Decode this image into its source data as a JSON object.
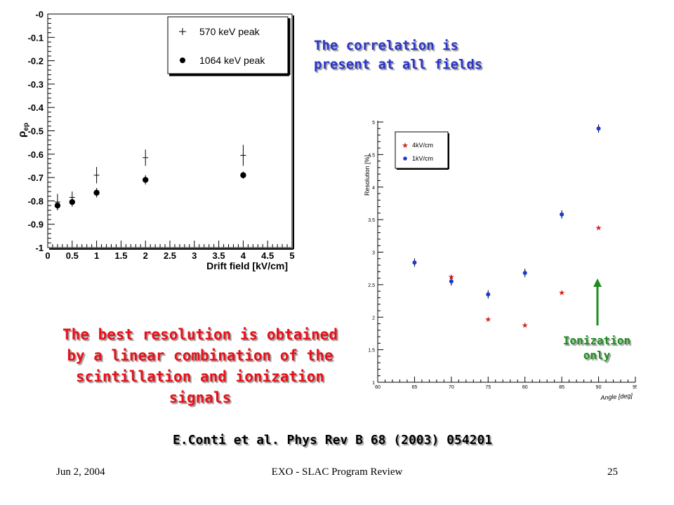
{
  "slide": {
    "note_top": [
      "The correlation is",
      "present at all fields"
    ],
    "note_best": [
      "The best resolution is obtained",
      "by a linear combination of the",
      "scintillation and ionization signals"
    ],
    "note_ionization": [
      "Ionization",
      "only"
    ],
    "citation": "E.Conti et al. Phys Rev B 68 (2003) 054201",
    "footer": {
      "date": "Jun 2, 2004",
      "title": "EXO - SLAC Program Review",
      "page": "25"
    }
  },
  "colors": {
    "blue_note": "#2a35c8",
    "red_note": "#e8101a",
    "green_note": "#1e8c1e",
    "series_4kv": "#d42020",
    "series_1kv": "#1a3ad0"
  },
  "chart_data": [
    {
      "type": "scatter",
      "xlabel": "Drift field [kV/cm]",
      "ylabel_main": "ρ",
      "ylabel_sub": "ep",
      "xlim": [
        0,
        5
      ],
      "ylim": [
        -1,
        0
      ],
      "xticks": [
        "0",
        "0.5",
        "1",
        "1.5",
        "2",
        "2.5",
        "3",
        "3.5",
        "4",
        "4.5",
        "5"
      ],
      "yticks": [
        "-0",
        "-0.1",
        "-0.2",
        "-0.3",
        "-0.4",
        "-0.5",
        "-0.6",
        "-0.7",
        "-0.8",
        "-0.9",
        "-1"
      ],
      "legend_position": "top-right",
      "series": [
        {
          "name": "570 keV peak",
          "marker": "cross",
          "x": [
            0.2,
            0.5,
            1,
            2,
            4
          ],
          "y": [
            -0.805,
            -0.785,
            -0.69,
            -0.615,
            -0.605
          ],
          "err": [
            0.035,
            0.025,
            0.035,
            0.035,
            0.045
          ]
        },
        {
          "name": "1064 keV peak",
          "marker": "dot",
          "x": [
            0.2,
            0.5,
            1,
            2,
            4
          ],
          "y": [
            -0.82,
            -0.805,
            -0.765,
            -0.71,
            -0.69
          ],
          "err": [
            0.02,
            0.02,
            0.02,
            0.02,
            0.015
          ]
        }
      ]
    },
    {
      "type": "scatter",
      "xlabel": "Angle [deg]",
      "ylabel": "Resolution [%]",
      "xlim": [
        60,
        95
      ],
      "ylim": [
        1,
        5
      ],
      "xticks": [
        "60",
        "65",
        "70",
        "75",
        "80",
        "85",
        "90",
        "95"
      ],
      "yticks": [
        "1",
        "1.5",
        "2",
        "2.5",
        "3",
        "3.5",
        "4",
        "4.5",
        "5"
      ],
      "legend_position": "top-left",
      "series": [
        {
          "name": "4kV/cm",
          "marker": "star",
          "x": [
            70,
            75,
            80,
            85,
            90
          ],
          "y": [
            2.62,
            1.97,
            1.88,
            2.38,
            3.38
          ]
        },
        {
          "name": "1kV/cm",
          "marker": "dot",
          "x": [
            65,
            70,
            75,
            80,
            85,
            90
          ],
          "y": [
            2.84,
            2.55,
            2.35,
            2.68,
            3.58,
            4.9
          ]
        }
      ],
      "annotation_arrow_x": 90
    }
  ]
}
